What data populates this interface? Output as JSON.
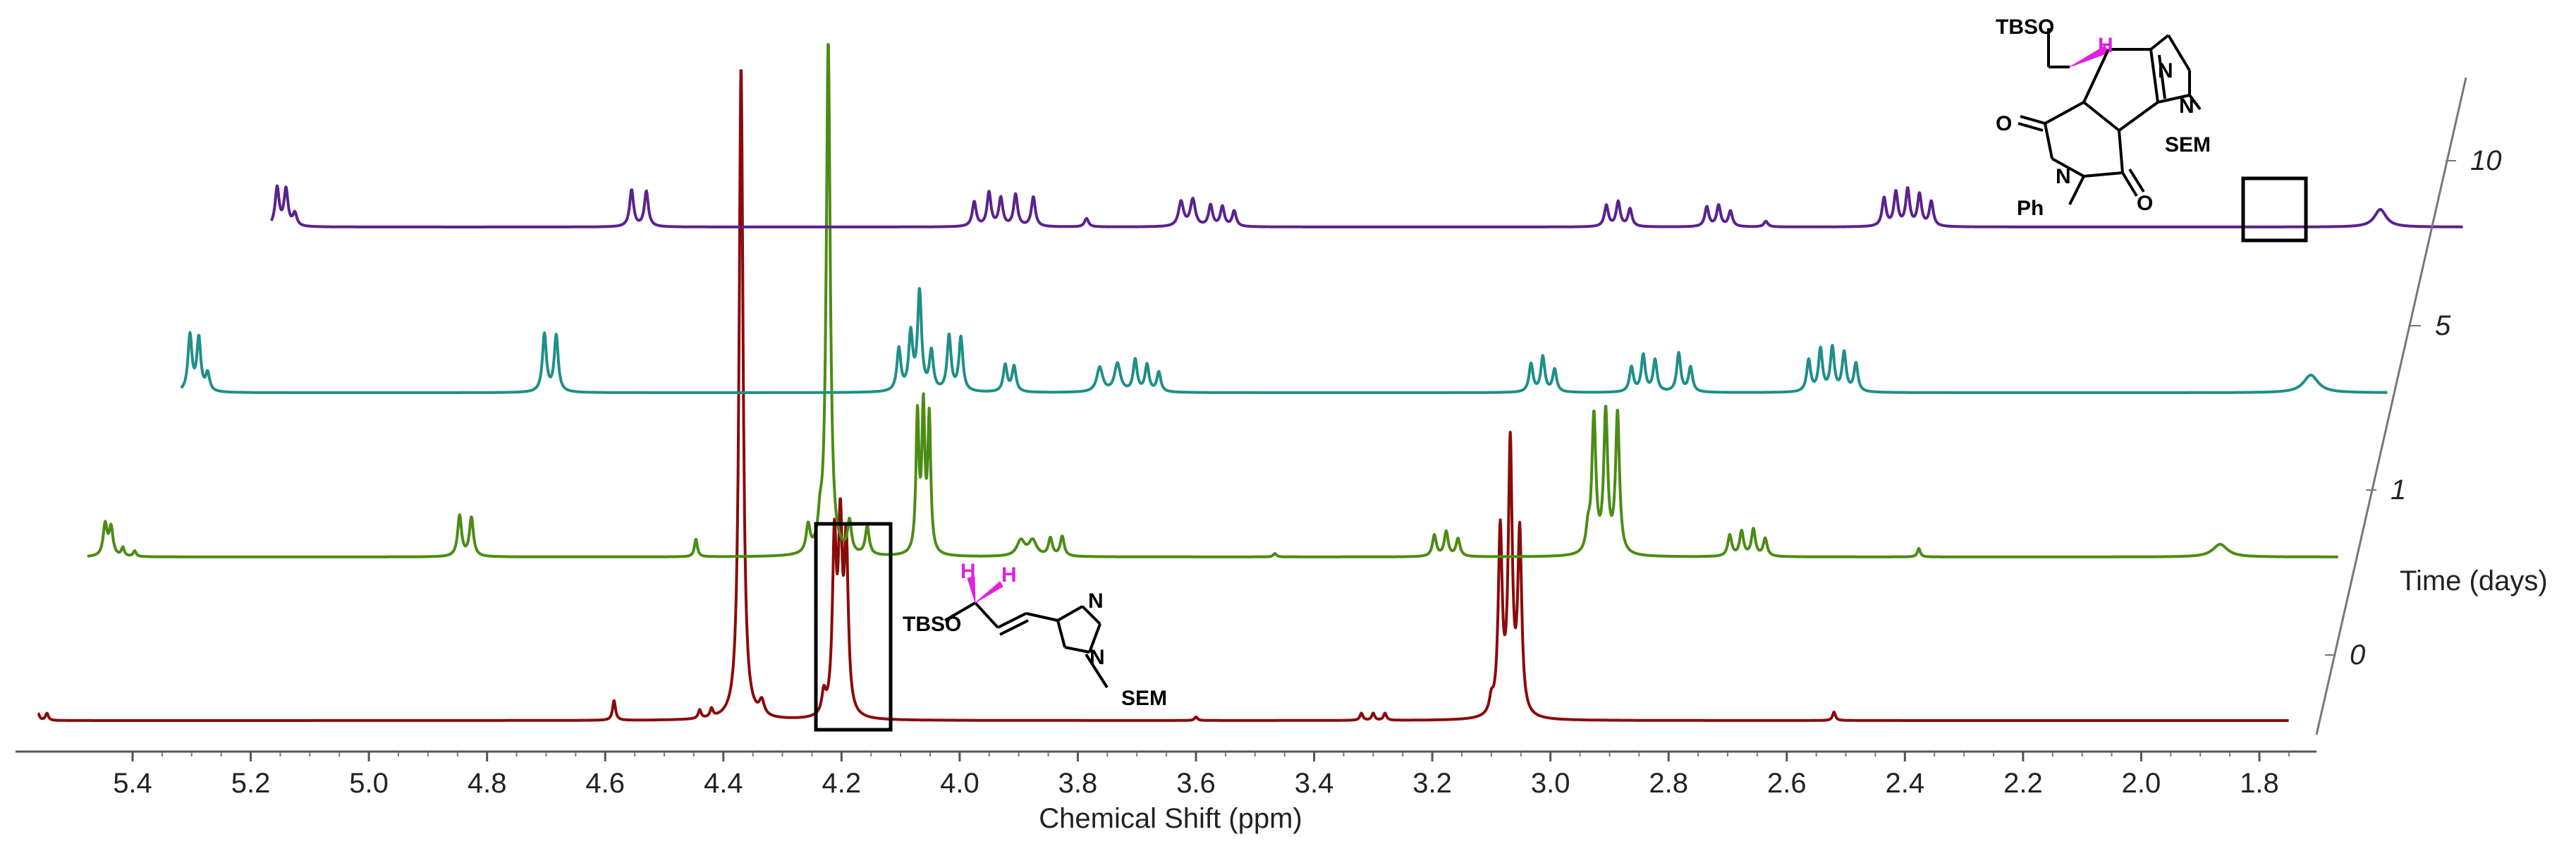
{
  "chart_data": {
    "type": "line",
    "title": "",
    "xlabel": "Chemical Shift (ppm)",
    "depth_axis_label": "Time (days)",
    "xlim": [
      5.58,
      1.75
    ],
    "x_ticks": [
      "5.4",
      "5.2",
      "5.0",
      "4.8",
      "4.6",
      "4.4",
      "4.2",
      "4.0",
      "3.8",
      "3.6",
      "3.4",
      "3.2",
      "3.0",
      "2.8",
      "2.6",
      "2.4",
      "2.2",
      "2.0",
      "1.8"
    ],
    "series": [
      {
        "name": "0",
        "color": "#8b0a0a",
        "baseline": 1022,
        "hmul": 1.0,
        "ppm_shift": 0,
        "range": [
          5.56,
          1.75
        ],
        "peaks": [
          [
            4.37,
            930,
            0.004
          ],
          [
            4.335,
            20,
            0.005
          ],
          [
            4.212,
            240,
            0.004
          ],
          [
            4.202,
            250,
            0.004
          ],
          [
            4.192,
            235,
            0.004
          ],
          [
            4.23,
            30,
            0.004
          ],
          [
            3.085,
            260,
            0.004
          ],
          [
            3.068,
            380,
            0.004
          ],
          [
            3.052,
            255,
            0.004
          ],
          [
            3.1,
            20,
            0.004
          ],
          [
            4.585,
            28,
            0.003
          ],
          [
            4.44,
            12,
            0.003
          ],
          [
            4.42,
            12,
            0.003
          ],
          [
            5.56,
            10,
            0.003
          ],
          [
            5.545,
            10,
            0.003
          ],
          [
            3.32,
            10,
            0.003
          ],
          [
            3.3,
            10,
            0.003
          ],
          [
            3.28,
            10,
            0.003
          ],
          [
            2.52,
            12,
            0.003
          ],
          [
            3.6,
            5,
            0.003
          ]
        ]
      },
      {
        "name": "1",
        "color": "#4c8c14",
        "baseline": 790,
        "hmul": 1.0,
        "ppm_shift": 0,
        "range": [
          5.56,
          1.75
        ],
        "peaks": [
          [
            4.306,
            730,
            0.004
          ],
          [
            4.34,
            38,
            0.004
          ],
          [
            4.32,
            34,
            0.004
          ],
          [
            4.27,
            45,
            0.004
          ],
          [
            4.24,
            40,
            0.004
          ],
          [
            4.155,
            195,
            0.003
          ],
          [
            4.145,
            200,
            0.003
          ],
          [
            4.135,
            190,
            0.003
          ],
          [
            3.01,
            195,
            0.004
          ],
          [
            2.99,
            200,
            0.004
          ],
          [
            2.97,
            200,
            0.004
          ],
          [
            3.02,
            30,
            0.004
          ],
          [
            5.53,
            45,
            0.004
          ],
          [
            5.52,
            40,
            0.004
          ],
          [
            5.5,
            12,
            0.003
          ],
          [
            5.48,
            8,
            0.003
          ],
          [
            4.93,
            58,
            0.004
          ],
          [
            4.91,
            55,
            0.004
          ],
          [
            4.53,
            25,
            0.003
          ],
          [
            3.98,
            22,
            0.008
          ],
          [
            3.96,
            22,
            0.008
          ],
          [
            3.93,
            25,
            0.004
          ],
          [
            3.91,
            28,
            0.004
          ],
          [
            3.28,
            30,
            0.004
          ],
          [
            3.26,
            35,
            0.004
          ],
          [
            3.24,
            25,
            0.004
          ],
          [
            2.78,
            30,
            0.004
          ],
          [
            2.76,
            35,
            0.004
          ],
          [
            2.74,
            38,
            0.004
          ],
          [
            2.72,
            25,
            0.004
          ],
          [
            2.46,
            12,
            0.003
          ],
          [
            1.95,
            18,
            0.015
          ],
          [
            3.55,
            5,
            0.003
          ]
        ]
      },
      {
        "name": "5",
        "color": "#1e8f8a",
        "baseline": 557,
        "hmul": 1.0,
        "ppm_shift": 0,
        "range": [
          5.485,
          1.75
        ],
        "peaks": [
          [
            5.47,
            80,
            0.004
          ],
          [
            5.455,
            75,
            0.004
          ],
          [
            5.44,
            25,
            0.004
          ],
          [
            4.87,
            82,
            0.004
          ],
          [
            4.85,
            80,
            0.004
          ],
          [
            4.27,
            60,
            0.004
          ],
          [
            4.25,
            80,
            0.004
          ],
          [
            4.235,
            140,
            0.004
          ],
          [
            4.215,
            55,
            0.004
          ],
          [
            4.185,
            78,
            0.004
          ],
          [
            4.165,
            76,
            0.004
          ],
          [
            4.09,
            38,
            0.004
          ],
          [
            4.075,
            36,
            0.004
          ],
          [
            3.93,
            35,
            0.006
          ],
          [
            3.9,
            40,
            0.006
          ],
          [
            3.87,
            45,
            0.004
          ],
          [
            3.85,
            38,
            0.004
          ],
          [
            3.83,
            28,
            0.004
          ],
          [
            3.2,
            40,
            0.004
          ],
          [
            3.18,
            50,
            0.004
          ],
          [
            3.16,
            32,
            0.004
          ],
          [
            3.03,
            35,
            0.004
          ],
          [
            3.01,
            52,
            0.004
          ],
          [
            2.99,
            45,
            0.004
          ],
          [
            2.95,
            55,
            0.004
          ],
          [
            2.93,
            35,
            0.004
          ],
          [
            2.73,
            45,
            0.004
          ],
          [
            2.71,
            60,
            0.004
          ],
          [
            2.69,
            62,
            0.004
          ],
          [
            2.67,
            55,
            0.004
          ],
          [
            2.65,
            40,
            0.004
          ],
          [
            1.88,
            25,
            0.015
          ]
        ]
      },
      {
        "name": "10",
        "color": "#5a228f",
        "baseline": 322,
        "hmul": 1.0,
        "ppm_shift": 0,
        "range": [
          5.41,
          1.7
        ],
        "peaks": [
          [
            5.4,
            55,
            0.004
          ],
          [
            5.385,
            52,
            0.004
          ],
          [
            5.37,
            18,
            0.004
          ],
          [
            4.8,
            52,
            0.004
          ],
          [
            4.775,
            50,
            0.004
          ],
          [
            4.22,
            35,
            0.004
          ],
          [
            4.195,
            48,
            0.004
          ],
          [
            4.175,
            40,
            0.004
          ],
          [
            4.15,
            45,
            0.004
          ],
          [
            4.12,
            42,
            0.004
          ],
          [
            4.03,
            12,
            0.004
          ],
          [
            3.87,
            35,
            0.005
          ],
          [
            3.85,
            38,
            0.005
          ],
          [
            3.82,
            30,
            0.004
          ],
          [
            3.8,
            28,
            0.004
          ],
          [
            3.78,
            22,
            0.004
          ],
          [
            3.15,
            30,
            0.004
          ],
          [
            3.13,
            35,
            0.004
          ],
          [
            3.11,
            25,
            0.004
          ],
          [
            2.98,
            28,
            0.004
          ],
          [
            2.96,
            30,
            0.004
          ],
          [
            2.94,
            22,
            0.004
          ],
          [
            2.88,
            8,
            0.004
          ],
          [
            2.68,
            40,
            0.004
          ],
          [
            2.66,
            48,
            0.004
          ],
          [
            2.64,
            52,
            0.004
          ],
          [
            2.62,
            45,
            0.004
          ],
          [
            2.6,
            35,
            0.004
          ],
          [
            1.84,
            25,
            0.012
          ]
        ]
      }
    ],
    "depth_labels": [
      "0",
      "1",
      "5",
      "10"
    ]
  },
  "molecules": {
    "top": {
      "tbso": "TBSO",
      "h": "H",
      "n_ring": "N",
      "n_sem": "N",
      "sem": "SEM",
      "o_left": "O",
      "o_right": "O",
      "n_imide": "N",
      "ph": "Ph"
    },
    "bottom": {
      "tbso": "TBSO",
      "h1": "H",
      "h2": "H",
      "n_ring": "N",
      "n_sem": "N",
      "sem": "SEM"
    }
  },
  "colors": {
    "highlight_h": "#e020e0",
    "axis": "#555555"
  }
}
